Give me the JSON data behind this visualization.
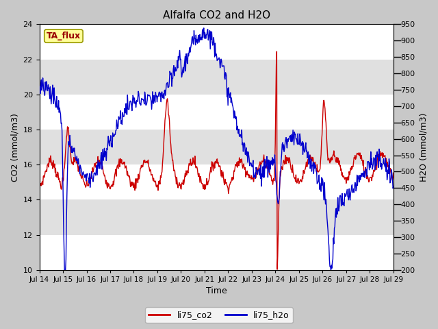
{
  "title": "Alfalfa CO2 and H2O",
  "xlabel": "Time",
  "ylabel_left": "CO2 (mmol/m3)",
  "ylabel_right": "H2O (mmol/m3)",
  "ylim_left": [
    10,
    24
  ],
  "ylim_right": [
    200,
    950
  ],
  "co2_color": "#cc0000",
  "h2o_color": "#0000cc",
  "fig_bg_color": "#c8c8c8",
  "plot_bg_color": "#e0e0e0",
  "legend_entries": [
    "li75_co2",
    "li75_h2o"
  ],
  "annotation_text": "TA_flux",
  "annotation_bg": "#ffff99",
  "annotation_border": "#999900",
  "left_yticks": [
    10,
    12,
    14,
    16,
    18,
    20,
    22,
    24
  ],
  "right_yticks": [
    200,
    250,
    300,
    350,
    400,
    450,
    500,
    550,
    600,
    650,
    700,
    750,
    800,
    850,
    900,
    950
  ],
  "xtick_labels": [
    "Jul 14",
    "Jul 15",
    "Jul 16",
    "Jul 17",
    "Jul 18",
    "Jul 19",
    "Jul 20",
    "Jul 21",
    "Jul 22",
    "Jul 23",
    "Jul 24",
    "Jul 25",
    "Jul 26",
    "Jul 27",
    "Jul 28",
    "Jul 29"
  ],
  "line_width": 1.0,
  "grid_color": "#ffffff",
  "title_fontsize": 11,
  "band_colors": [
    "#e8e8e8",
    "#d8d8d8"
  ]
}
